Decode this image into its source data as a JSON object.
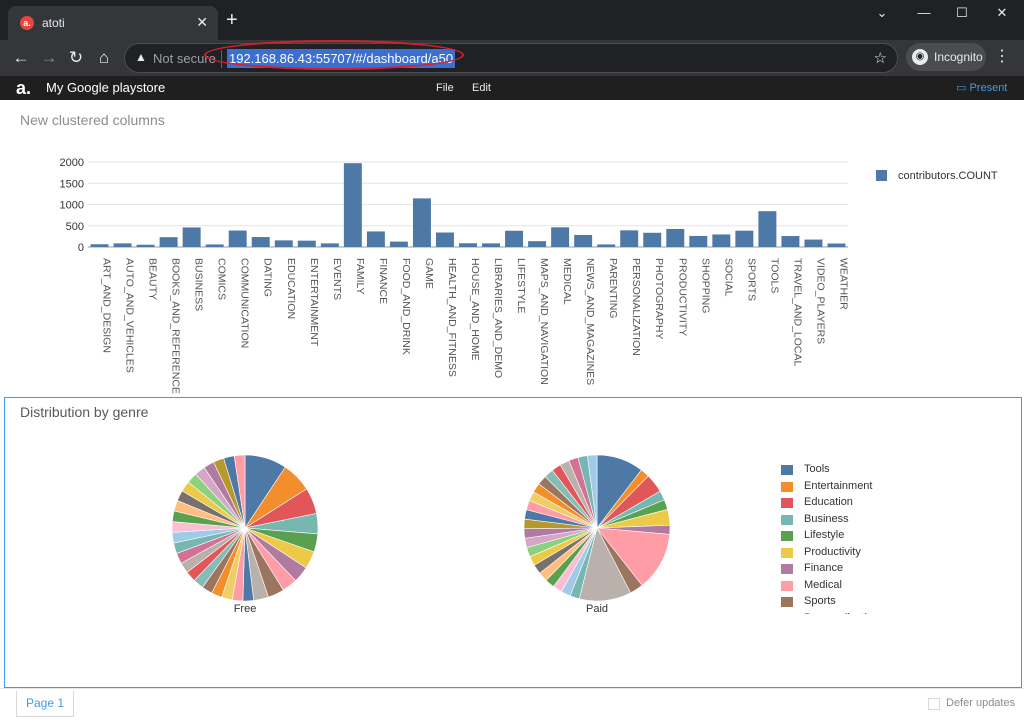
{
  "browser": {
    "tab_title": "atoti",
    "tab_favicon": "a.",
    "newtab_glyph": "+",
    "close_glyph": "✕",
    "window_controls": {
      "min": "⌄",
      "minimize": "—",
      "maximize": "☐",
      "close": "✕"
    },
    "nav": {
      "back": "←",
      "forward": "→",
      "reload": "↻",
      "home": "⌂"
    },
    "security_label": "Not secure",
    "url": "192.168.86.43:55707/#/dashboard/a50",
    "incognito_label": "Incognito",
    "icons": {
      "warn": "warning-icon",
      "star": "star-icon",
      "menu": "kebab-icon"
    }
  },
  "app": {
    "logo": "a.",
    "title": "My Google playstore",
    "menu": {
      "file": "File",
      "edit": "Edit"
    },
    "present_label": "Present"
  },
  "colors": {
    "accent": "#3d9be9",
    "bar": "#4e79a7",
    "chrome_bg": "#202124",
    "appbar": "#1f1f1f"
  },
  "panels": {
    "chart1_title": "New clustered columns",
    "chart2_title": "Distribution by genre"
  },
  "footer": {
    "page_tab": "Page 1",
    "defer_label": "Defer updates"
  },
  "chart_data": [
    {
      "type": "bar",
      "title": "New clustered columns",
      "series": [
        {
          "name": "contributors.COUNT",
          "color": "#4e79a7"
        }
      ],
      "categories": [
        "ART_AND_DESIGN",
        "AUTO_AND_VEHICLES",
        "BEAUTY",
        "BOOKS_AND_REFERENCE",
        "BUSINESS",
        "COMICS",
        "COMMUNICATION",
        "DATING",
        "EDUCATION",
        "ENTERTAINMENT",
        "EVENTS",
        "FAMILY",
        "FINANCE",
        "FOOD_AND_DRINK",
        "GAME",
        "HEALTH_AND_FITNESS",
        "HOUSE_AND_HOME",
        "LIBRARIES_AND_DEMO",
        "LIFESTYLE",
        "MAPS_AND_NAVIGATION",
        "MEDICAL",
        "NEWS_AND_MAGAZINES",
        "PARENTING",
        "PERSONALIZATION",
        "PHOTOGRAPHY",
        "PRODUCTIVITY",
        "SHOPPING",
        "SOCIAL",
        "SPORTS",
        "TOOLS",
        "TRAVEL_AND_LOCAL",
        "VIDEO_PLAYERS",
        "WEATHER"
      ],
      "values": [
        65,
        85,
        53,
        231,
        460,
        60,
        387,
        234,
        156,
        149,
        85,
        1972,
        366,
        127,
        1144,
        341,
        88,
        85,
        382,
        137,
        463,
        283,
        60,
        392,
        335,
        424,
        260,
        295,
        384,
        843,
        258,
        175,
        82
      ],
      "yticks": [
        0,
        500,
        1000,
        1500,
        2000
      ],
      "ylim": [
        0,
        2000
      ],
      "grid": true,
      "legend_position": "top-right"
    },
    {
      "type": "pie",
      "title": "Distribution by genre",
      "subcharts": [
        {
          "label": "Free",
          "slices": [
            {
              "name": "Tools",
              "value": 9.3
            },
            {
              "name": "Entertainment",
              "value": 6.7
            },
            {
              "name": "Education",
              "value": 5.8
            },
            {
              "name": "Business",
              "value": 4.5
            },
            {
              "name": "Lifestyle",
              "value": 4.0
            },
            {
              "name": "Productivity",
              "value": 3.9
            },
            {
              "name": "Finance",
              "value": 3.6
            },
            {
              "name": "Medical",
              "value": 3.4
            },
            {
              "name": "Sports",
              "value": 3.6
            },
            {
              "name": "Personalization",
              "value": 3.3
            }
          ]
        },
        {
          "label": "Paid",
          "slices": [
            {
              "name": "Tools",
              "value": 10.4
            },
            {
              "name": "Entertainment",
              "value": 2.0
            },
            {
              "name": "Education",
              "value": 4.2
            },
            {
              "name": "Business",
              "value": 2.1
            },
            {
              "name": "Lifestyle",
              "value": 2.2
            },
            {
              "name": "Productivity",
              "value": 3.5
            },
            {
              "name": "Finance",
              "value": 2.0
            },
            {
              "name": "Medical",
              "value": 13.0
            },
            {
              "name": "Sports",
              "value": 3.0
            },
            {
              "name": "Personalization",
              "value": 11.5
            }
          ]
        }
      ],
      "legend": [
        {
          "name": "Tools",
          "color": "#4e79a7"
        },
        {
          "name": "Entertainment",
          "color": "#f28e2b"
        },
        {
          "name": "Education",
          "color": "#e15759"
        },
        {
          "name": "Business",
          "color": "#76b7b2"
        },
        {
          "name": "Lifestyle",
          "color": "#59a14f"
        },
        {
          "name": "Productivity",
          "color": "#edc948"
        },
        {
          "name": "Finance",
          "color": "#b07aa1"
        },
        {
          "name": "Medical",
          "color": "#ff9da7"
        },
        {
          "name": "Sports",
          "color": "#9c755f"
        },
        {
          "name": "Personalization",
          "color": "#bab0ac"
        }
      ],
      "legend_position": "right"
    }
  ]
}
